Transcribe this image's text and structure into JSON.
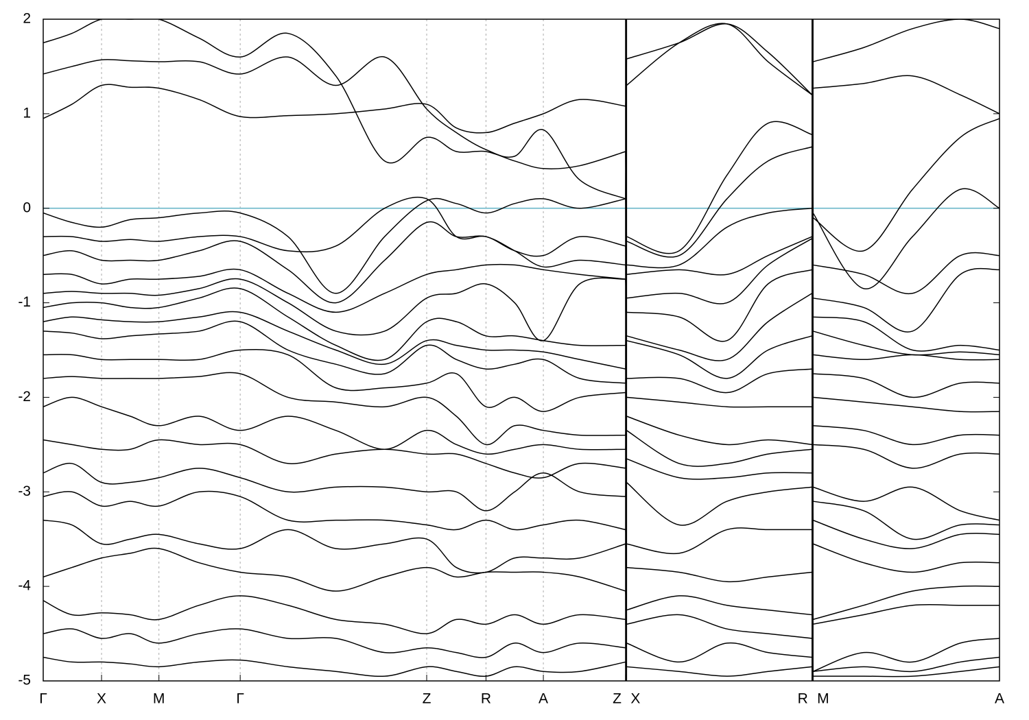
{
  "chart_data": {
    "type": "line",
    "x": [
      0,
      0.03,
      0.061,
      0.091,
      0.121,
      0.163,
      0.206,
      0.256,
      0.306,
      0.357,
      0.401,
      0.432,
      0.463,
      0.493,
      0.523,
      0.561,
      0.609,
      0.61,
      0.665,
      0.715,
      0.758,
      0.804,
      0.805,
      0.858,
      0.909,
      0.959,
      1.0
    ],
    "xlim": [
      0,
      1.0
    ],
    "ylim": [
      -5,
      2
    ],
    "yticks": [
      2,
      1,
      0,
      -1,
      -2,
      -3,
      -4,
      -5
    ],
    "xticks": [
      {
        "value": 0,
        "label": "Γ"
      },
      {
        "value": 0.061,
        "label": "X"
      },
      {
        "value": 0.121,
        "label": "M"
      },
      {
        "value": 0.206,
        "label": "Γ"
      },
      {
        "value": 0.401,
        "label": "Z"
      },
      {
        "value": 0.463,
        "label": "R"
      },
      {
        "value": 0.523,
        "label": "A"
      },
      {
        "value": 0.609,
        "label": "Z"
      },
      {
        "value": 0.61,
        "label": "X"
      },
      {
        "value": 0.804,
        "label": "R"
      },
      {
        "value": 0.805,
        "label": "M"
      },
      {
        "value": 1.0,
        "label": "A"
      }
    ],
    "reference_line": {
      "value": 0,
      "color": "#6ab7c9"
    },
    "series": [
      {
        "color": "#000000",
        "values": [
          0.95,
          1.1,
          1.3,
          1.28,
          1.27,
          1.15,
          0.97,
          0.98,
          1.0,
          1.05,
          1.1,
          0.85,
          0.8,
          0.9,
          1.0,
          1.15,
          1.08,
          1.3,
          1.75,
          1.95,
          1.55,
          1.2,
          1.27,
          1.32,
          1.4,
          1.2,
          1.0
        ]
      },
      {
        "color": "#000000",
        "values": [
          1.42,
          1.5,
          1.57,
          1.56,
          1.55,
          1.55,
          1.42,
          1.6,
          1.3,
          1.6,
          1.05,
          0.8,
          0.62,
          0.55,
          0.83,
          0.3,
          0.1,
          1.58,
          1.75,
          1.95,
          1.65,
          1.2,
          1.55,
          1.7,
          1.9,
          2.0,
          1.9
        ]
      },
      {
        "color": "#000000",
        "values": [
          1.75,
          1.85,
          2.0,
          2.0,
          2.0,
          1.8,
          1.6,
          1.85,
          1.4,
          0.5,
          0.75,
          0.6,
          0.6,
          0.5,
          0.42,
          0.45,
          0.6,
          -0.3,
          -0.45,
          0.35,
          0.9,
          0.78,
          -0.1,
          -0.45,
          0.2,
          0.75,
          0.95
        ]
      },
      {
        "color": "#000000",
        "values": [
          -0.05,
          -0.15,
          -0.2,
          -0.12,
          -0.1,
          -0.05,
          -0.05,
          -0.3,
          -0.9,
          -0.3,
          0.08,
          0.05,
          -0.05,
          0.05,
          0.1,
          0.0,
          0.1,
          -0.35,
          -0.5,
          0.1,
          0.5,
          0.65,
          -0.05,
          -0.85,
          -0.3,
          0.2,
          0.0
        ]
      },
      {
        "color": "#000000",
        "values": [
          -0.3,
          -0.3,
          -0.35,
          -0.33,
          -0.35,
          -0.3,
          -0.3,
          -0.45,
          -0.4,
          0.0,
          0.1,
          -0.3,
          -0.3,
          -0.45,
          -0.5,
          -0.3,
          -0.4,
          -0.6,
          -0.6,
          -0.2,
          -0.05,
          0.0,
          -0.6,
          -0.7,
          -0.9,
          -0.5,
          -0.5
        ]
      },
      {
        "color": "#000000",
        "values": [
          -0.5,
          -0.45,
          -0.55,
          -0.55,
          -0.55,
          -0.45,
          -0.35,
          -0.65,
          -1.0,
          -0.55,
          -0.15,
          -0.3,
          -0.3,
          -0.45,
          -0.62,
          -0.55,
          -0.6,
          -0.7,
          -0.65,
          -0.7,
          -0.5,
          -0.3,
          -0.95,
          -1.05,
          -1.3,
          -0.7,
          -0.65
        ]
      },
      {
        "color": "#000000",
        "values": [
          -0.7,
          -0.7,
          -0.8,
          -0.75,
          -0.75,
          -0.72,
          -0.65,
          -0.9,
          -1.1,
          -0.9,
          -0.7,
          -0.65,
          -0.6,
          -0.6,
          -0.65,
          -0.7,
          -0.75,
          -0.95,
          -0.9,
          -1.0,
          -0.6,
          -0.32,
          -1.15,
          -1.2,
          -1.5,
          -1.45,
          -1.5
        ]
      },
      {
        "color": "#000000",
        "values": [
          -0.9,
          -0.88,
          -0.9,
          -0.9,
          -0.92,
          -0.85,
          -0.75,
          -1.0,
          -1.3,
          -1.3,
          -0.95,
          -0.9,
          -0.8,
          -1.0,
          -1.4,
          -0.8,
          -0.75,
          -1.1,
          -1.15,
          -1.4,
          -0.8,
          -0.65,
          -1.3,
          -1.45,
          -1.55,
          -1.52,
          -1.55
        ]
      },
      {
        "color": "#000000",
        "values": [
          -1.05,
          -1.0,
          -1.0,
          -1.05,
          -1.05,
          -0.95,
          -0.85,
          -1.15,
          -1.45,
          -1.6,
          -1.2,
          -1.2,
          -1.35,
          -1.35,
          -1.4,
          -1.45,
          -1.45,
          -1.35,
          -1.5,
          -1.6,
          -1.2,
          -0.9,
          -1.55,
          -1.6,
          -1.55,
          -1.6,
          -1.6
        ]
      },
      {
        "color": "#000000",
        "values": [
          -1.2,
          -1.15,
          -1.18,
          -1.2,
          -1.2,
          -1.15,
          -1.1,
          -1.3,
          -1.5,
          -1.65,
          -1.4,
          -1.45,
          -1.5,
          -1.5,
          -1.52,
          -1.6,
          -1.7,
          -1.4,
          -1.55,
          -1.8,
          -1.5,
          -1.35,
          -1.75,
          -1.8,
          -2.0,
          -1.85,
          -1.85
        ]
      },
      {
        "color": "#000000",
        "values": [
          -1.3,
          -1.32,
          -1.38,
          -1.35,
          -1.33,
          -1.3,
          -1.2,
          -1.5,
          -1.65,
          -1.75,
          -1.45,
          -1.6,
          -1.7,
          -1.65,
          -1.6,
          -1.8,
          -1.85,
          -1.8,
          -1.8,
          -1.95,
          -1.75,
          -1.7,
          -2.0,
          -2.05,
          -2.1,
          -2.15,
          -2.15
        ]
      },
      {
        "color": "#000000",
        "values": [
          -1.55,
          -1.55,
          -1.6,
          -1.6,
          -1.6,
          -1.6,
          -1.5,
          -1.55,
          -1.9,
          -1.9,
          -1.85,
          -1.75,
          -2.1,
          -2.0,
          -2.15,
          -2.0,
          -1.95,
          -2.0,
          -2.05,
          -2.1,
          -2.1,
          -2.1,
          -2.3,
          -2.35,
          -2.5,
          -2.4,
          -2.4
        ]
      },
      {
        "color": "#000000",
        "values": [
          -1.8,
          -1.78,
          -1.8,
          -1.8,
          -1.8,
          -1.78,
          -1.75,
          -2.0,
          -2.05,
          -2.1,
          -2.0,
          -2.2,
          -2.5,
          -2.3,
          -2.35,
          -2.4,
          -2.4,
          -2.2,
          -2.4,
          -2.5,
          -2.45,
          -2.5,
          -2.5,
          -2.55,
          -2.75,
          -2.6,
          -2.6
        ]
      },
      {
        "color": "#000000",
        "values": [
          -2.1,
          -2.0,
          -2.1,
          -2.2,
          -2.3,
          -2.2,
          -2.35,
          -2.2,
          -2.35,
          -2.55,
          -2.35,
          -2.5,
          -2.6,
          -2.55,
          -2.5,
          -2.55,
          -2.55,
          -2.35,
          -2.7,
          -2.7,
          -2.6,
          -2.55,
          -2.95,
          -3.1,
          -2.95,
          -3.2,
          -3.3
        ]
      },
      {
        "color": "#000000",
        "values": [
          -2.45,
          -2.5,
          -2.55,
          -2.55,
          -2.45,
          -2.5,
          -2.5,
          -2.7,
          -2.6,
          -2.55,
          -2.6,
          -2.6,
          -2.7,
          -2.8,
          -2.85,
          -2.7,
          -2.75,
          -2.65,
          -2.85,
          -2.85,
          -2.8,
          -2.8,
          -3.1,
          -3.2,
          -3.5,
          -3.35,
          -3.35
        ]
      },
      {
        "color": "#000000",
        "values": [
          -2.8,
          -2.7,
          -2.9,
          -2.9,
          -2.85,
          -2.75,
          -2.85,
          -3.0,
          -2.95,
          -2.95,
          -3.0,
          -3.0,
          -3.2,
          -3.0,
          -2.8,
          -3.0,
          -3.05,
          -2.9,
          -3.35,
          -3.1,
          -3.0,
          -2.95,
          -3.3,
          -3.5,
          -3.6,
          -3.45,
          -3.45
        ]
      },
      {
        "color": "#000000",
        "values": [
          -3.05,
          -3.0,
          -3.15,
          -3.1,
          -3.15,
          -3.0,
          -3.05,
          -3.3,
          -3.3,
          -3.3,
          -3.35,
          -3.4,
          -3.3,
          -3.4,
          -3.35,
          -3.3,
          -3.4,
          -3.55,
          -3.65,
          -3.4,
          -3.4,
          -3.4,
          -3.55,
          -3.75,
          -3.85,
          -3.75,
          -3.75
        ]
      },
      {
        "color": "#000000",
        "values": [
          -3.3,
          -3.35,
          -3.55,
          -3.5,
          -3.45,
          -3.55,
          -3.6,
          -3.4,
          -3.6,
          -3.55,
          -3.5,
          -3.8,
          -3.85,
          -3.7,
          -3.7,
          -3.7,
          -3.55,
          -3.8,
          -3.85,
          -3.95,
          -3.9,
          -3.85,
          -4.35,
          -4.2,
          -4.05,
          -4.0,
          -4.0
        ]
      },
      {
        "color": "#000000",
        "values": [
          -3.9,
          -3.8,
          -3.7,
          -3.65,
          -3.6,
          -3.75,
          -3.85,
          -3.9,
          -4.05,
          -3.9,
          -3.8,
          -3.9,
          -3.85,
          -3.85,
          -3.85,
          -3.9,
          -4.05,
          -4.25,
          -4.1,
          -4.2,
          -4.25,
          -4.3,
          -4.4,
          -4.3,
          -4.2,
          -4.2,
          -4.2
        ]
      },
      {
        "color": "#000000",
        "values": [
          -4.15,
          -4.3,
          -4.28,
          -4.3,
          -4.35,
          -4.2,
          -4.1,
          -4.2,
          -4.35,
          -4.4,
          -4.5,
          -4.35,
          -4.4,
          -4.3,
          -4.4,
          -4.3,
          -4.35,
          -4.4,
          -4.3,
          -4.45,
          -4.5,
          -4.55,
          -4.9,
          -4.7,
          -4.8,
          -4.6,
          -4.55
        ]
      },
      {
        "color": "#000000",
        "values": [
          -4.5,
          -4.45,
          -4.55,
          -4.5,
          -4.6,
          -4.5,
          -4.45,
          -4.55,
          -4.55,
          -4.7,
          -4.65,
          -4.7,
          -4.75,
          -4.6,
          -4.7,
          -4.6,
          -4.65,
          -4.6,
          -4.8,
          -4.6,
          -4.7,
          -4.75,
          -4.9,
          -4.85,
          -4.9,
          -4.8,
          -4.75
        ]
      },
      {
        "color": "#000000",
        "values": [
          -4.75,
          -4.8,
          -4.8,
          -4.82,
          -4.85,
          -4.8,
          -4.78,
          -4.85,
          -4.9,
          -4.95,
          -4.85,
          -4.9,
          -4.95,
          -4.85,
          -4.9,
          -4.9,
          -4.8,
          -4.85,
          -4.9,
          -4.95,
          -4.9,
          -4.85,
          -4.95,
          -4.95,
          -4.95,
          -4.9,
          -4.85
        ]
      }
    ]
  }
}
